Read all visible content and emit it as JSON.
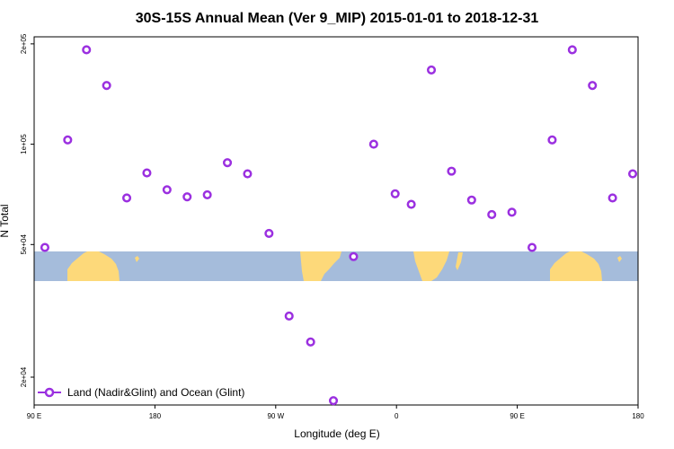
{
  "chart_data": {
    "type": "scatter",
    "title": "30S-15S Annual Mean (Ver 9_MIP)   2015-01-01 to 2018-12-31",
    "xlabel": "Longitude (deg E)",
    "ylabel": "N Total",
    "y_scale": "log",
    "xlim": [
      90,
      540
    ],
    "ylim": [
      16500,
      210000
    ],
    "x_ticks": [
      {
        "value": 90,
        "label": "90 E"
      },
      {
        "value": 180,
        "label": "180"
      },
      {
        "value": 270,
        "label": "90 W"
      },
      {
        "value": 360,
        "label": "0"
      },
      {
        "value": 450,
        "label": "90 E"
      },
      {
        "value": 540,
        "label": "180"
      }
    ],
    "y_ticks": [
      {
        "value": 20000,
        "label": "2e+04"
      },
      {
        "value": 50000,
        "label": "5e+04"
      },
      {
        "value": 100000,
        "label": "1e+05"
      },
      {
        "value": 200000,
        "label": "2e+05"
      }
    ],
    "series": [
      {
        "name": "Land (Nadir&Glint) and Ocean (Glint)",
        "color": "#9b30e0",
        "x": [
          98,
          115,
          129,
          144,
          159,
          174,
          189,
          204,
          219,
          234,
          249,
          265,
          280,
          296,
          313,
          328,
          343,
          359,
          371,
          386,
          401,
          416,
          431,
          446,
          461,
          476,
          491,
          506,
          521,
          536
        ],
        "y": [
          49000,
          103000,
          192000,
          150000,
          69000,
          82000,
          73000,
          69500,
          70500,
          88000,
          81500,
          54000,
          30500,
          25500,
          17000,
          46000,
          100000,
          71000,
          66000,
          167000,
          83000,
          68000,
          61500,
          62500,
          49000,
          103000,
          192000,
          150000,
          69000,
          81500
        ]
      }
    ],
    "legend": {
      "position": "bottom-left",
      "label": "Land (Nadir&Glint) and Ocean (Glint)"
    },
    "map_strip": {
      "ocean_color": "#a5bcdb",
      "land_color": "#fdd97a"
    }
  }
}
